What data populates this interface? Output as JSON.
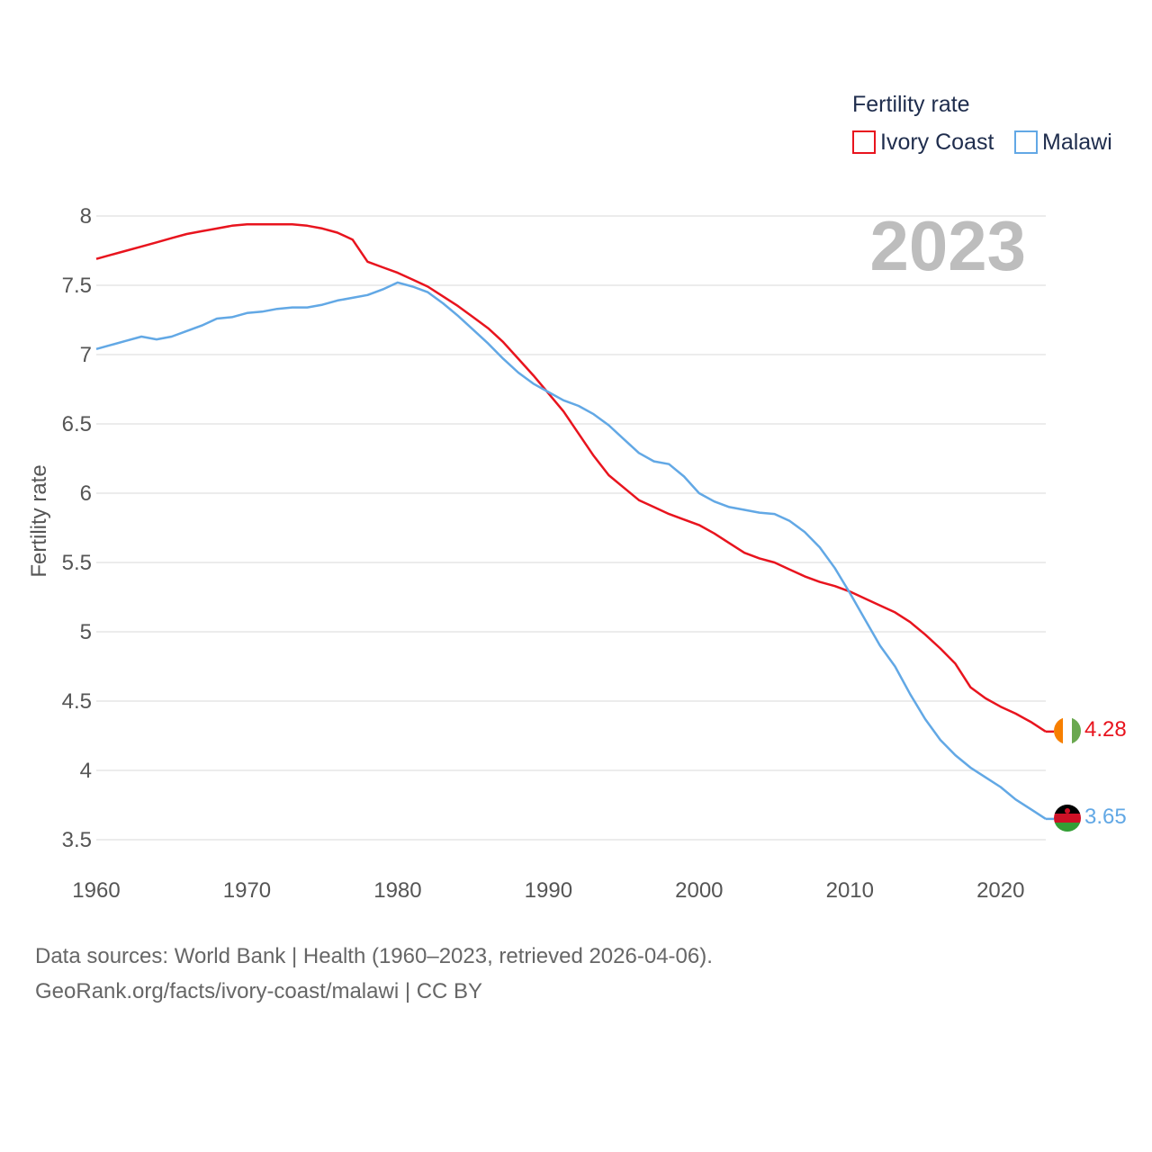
{
  "legend": {
    "title": "Fertility rate",
    "items": [
      {
        "label": "Ivory Coast",
        "color": "#e8141e"
      },
      {
        "label": "Malawi",
        "color": "#62a8e5"
      }
    ]
  },
  "year_watermark": "2023",
  "footer": {
    "line1": "Data sources: World Bank | Health (1960–2023, retrieved 2026-04-06).",
    "line2": "GeoRank.org/facts/ivory-coast/malawi | CC BY"
  },
  "chart_data": {
    "type": "line",
    "title": "Fertility rate",
    "xlabel": "",
    "ylabel": "Fertility rate",
    "xlim": [
      1960,
      2023
    ],
    "ylim": [
      3.5,
      8
    ],
    "x_ticks": [
      "1960",
      "1970",
      "1980",
      "1990",
      "2000",
      "2010",
      "2020"
    ],
    "y_ticks": [
      "3.5",
      "4",
      "4.5",
      "5",
      "5.5",
      "6",
      "6.5",
      "7",
      "7.5",
      "8"
    ],
    "grid": true,
    "legend_position": "top-right",
    "x": [
      1960,
      1961,
      1962,
      1963,
      1964,
      1965,
      1966,
      1967,
      1968,
      1969,
      1970,
      1971,
      1972,
      1973,
      1974,
      1975,
      1976,
      1977,
      1978,
      1979,
      1980,
      1981,
      1982,
      1983,
      1984,
      1985,
      1986,
      1987,
      1988,
      1989,
      1990,
      1991,
      1992,
      1993,
      1994,
      1995,
      1996,
      1997,
      1998,
      1999,
      2000,
      2001,
      2002,
      2003,
      2004,
      2005,
      2006,
      2007,
      2008,
      2009,
      2010,
      2011,
      2012,
      2013,
      2014,
      2015,
      2016,
      2017,
      2018,
      2019,
      2020,
      2021,
      2022,
      2023
    ],
    "series": [
      {
        "name": "Ivory Coast",
        "color": "#e8141e",
        "flag": "ivory-coast-flag",
        "end_label": "4.28",
        "values": [
          7.69,
          7.72,
          7.75,
          7.78,
          7.81,
          7.84,
          7.87,
          7.89,
          7.91,
          7.93,
          7.94,
          7.94,
          7.94,
          7.94,
          7.93,
          7.91,
          7.88,
          7.83,
          7.67,
          7.63,
          7.59,
          7.54,
          7.49,
          7.42,
          7.35,
          7.27,
          7.19,
          7.09,
          6.97,
          6.85,
          6.72,
          6.59,
          6.43,
          6.27,
          6.13,
          6.04,
          5.95,
          5.9,
          5.85,
          5.81,
          5.77,
          5.71,
          5.64,
          5.57,
          5.53,
          5.5,
          5.45,
          5.4,
          5.36,
          5.33,
          5.29,
          5.24,
          5.19,
          5.14,
          5.07,
          4.98,
          4.88,
          4.77,
          4.6,
          4.52,
          4.46,
          4.41,
          4.35,
          4.28
        ]
      },
      {
        "name": "Malawi",
        "color": "#62a8e5",
        "flag": "malawi-flag",
        "end_label": "3.65",
        "values": [
          7.04,
          7.07,
          7.1,
          7.13,
          7.11,
          7.13,
          7.17,
          7.21,
          7.26,
          7.27,
          7.3,
          7.31,
          7.33,
          7.34,
          7.34,
          7.36,
          7.39,
          7.41,
          7.43,
          7.47,
          7.52,
          7.49,
          7.45,
          7.37,
          7.28,
          7.18,
          7.08,
          6.97,
          6.87,
          6.79,
          6.73,
          6.67,
          6.63,
          6.57,
          6.49,
          6.39,
          6.29,
          6.23,
          6.21,
          6.12,
          6.0,
          5.94,
          5.9,
          5.88,
          5.86,
          5.85,
          5.8,
          5.72,
          5.61,
          5.46,
          5.28,
          5.09,
          4.9,
          4.75,
          4.55,
          4.37,
          4.22,
          4.11,
          4.02,
          3.95,
          3.88,
          3.79,
          3.72,
          3.65
        ]
      }
    ]
  }
}
